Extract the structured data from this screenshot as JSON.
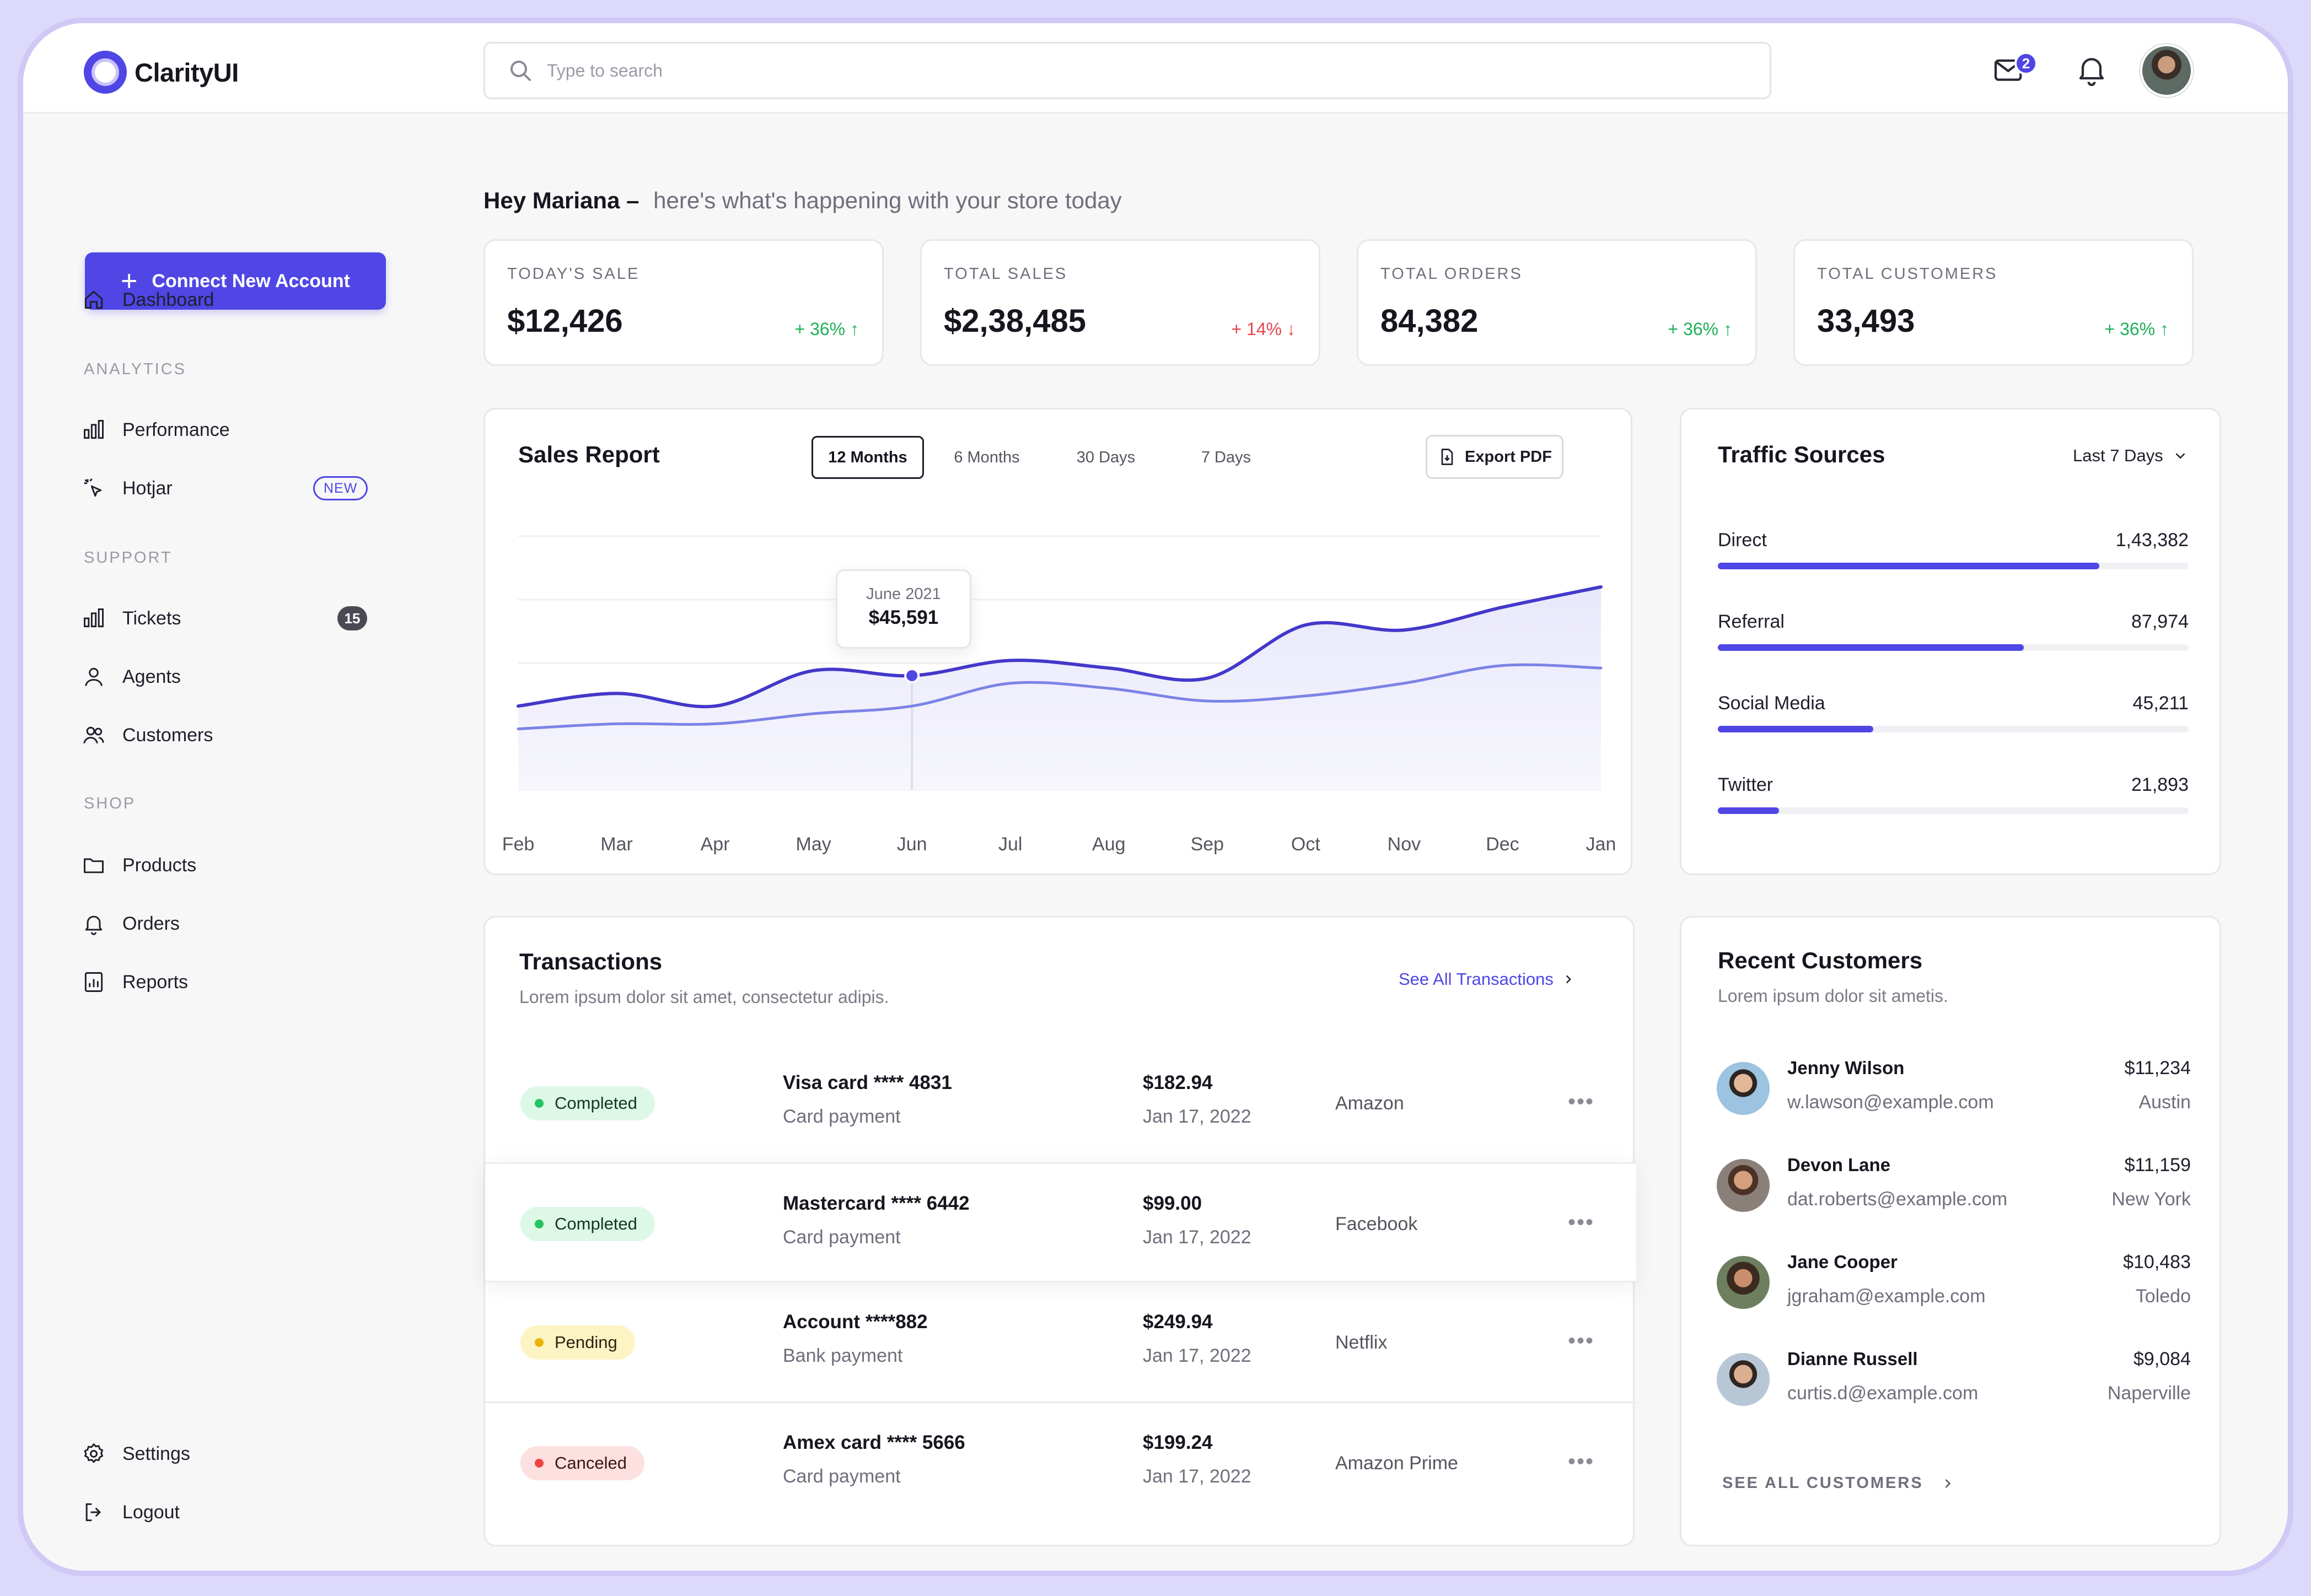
{
  "app": {
    "name": "ClarityUI"
  },
  "search": {
    "placeholder": "Type to search"
  },
  "header": {
    "mail_badge": "2"
  },
  "sidebar": {
    "connect_label": "Connect New Account",
    "dashboard": "Dashboard",
    "sections": {
      "analytics": "ANALYTICS",
      "support": "SUPPORT",
      "shop": "SHOP"
    },
    "performance": "Performance",
    "hotjar": "Hotjar",
    "hotjar_badge": "NEW",
    "tickets": "Tickets",
    "tickets_count": "15",
    "agents": "Agents",
    "customers": "Customers",
    "products": "Products",
    "orders": "Orders",
    "reports": "Reports",
    "settings": "Settings",
    "logout": "Logout"
  },
  "greeting": {
    "name": "Hey Mariana –",
    "text": "here's what's happening with your store today"
  },
  "stats": [
    {
      "title": "TODAY'S SALE",
      "value": "$12,426",
      "delta": "+ 36% ↑",
      "trend": "up"
    },
    {
      "title": "TOTAL SALES",
      "value": "$2,38,485",
      "delta": "+ 14% ↓",
      "trend": "down"
    },
    {
      "title": "TOTAL ORDERS",
      "value": "84,382",
      "delta": "+ 36% ↑",
      "trend": "up"
    },
    {
      "title": "TOTAL CUSTOMERS",
      "value": "33,493",
      "delta": "+ 36% ↑",
      "trend": "up"
    }
  ],
  "sales_report": {
    "title": "Sales Report",
    "ranges": [
      "12 Months",
      "6 Months",
      "30 Days",
      "7 Days"
    ],
    "active_range": "12 Months",
    "export_label": "Export PDF",
    "tooltip": {
      "label": "June 2021",
      "value": "$45,591"
    }
  },
  "chart_data": {
    "type": "line",
    "categories": [
      "Feb",
      "Mar",
      "Apr",
      "May",
      "Jun",
      "Jul",
      "Aug",
      "Sep",
      "Oct",
      "Nov",
      "Dec",
      "Jan"
    ],
    "series": [
      {
        "values": [
          33,
          38,
          33,
          47,
          45,
          51,
          48,
          44,
          65,
          63,
          72,
          80
        ]
      },
      {
        "values": [
          24,
          26,
          26,
          30,
          33,
          42,
          40,
          35,
          37,
          42,
          49,
          48
        ]
      }
    ],
    "ylim": [
      0,
      100
    ],
    "highlight": {
      "category": "Jun",
      "series": 0
    },
    "colors": [
      "#4338ca",
      "#7c83e6"
    ],
    "grid": true
  },
  "traffic": {
    "title": "Traffic Sources",
    "range": "Last 7 Days",
    "rows": [
      {
        "label": "Direct",
        "value": "1,43,382",
        "fraction": 0.81
      },
      {
        "label": "Referral",
        "value": "87,974",
        "fraction": 0.65
      },
      {
        "label": "Social Media",
        "value": "45,211",
        "fraction": 0.33
      },
      {
        "label": "Twitter",
        "value": "21,893",
        "fraction": 0.13
      }
    ]
  },
  "transactions": {
    "title": "Transactions",
    "subtitle": "Lorem ipsum dolor sit amet, consectetur adipis.",
    "see_all": "See All Transactions",
    "rows": [
      {
        "status": "Completed",
        "card": "Visa card  **** 4831",
        "method": "Card payment",
        "amount": "$182.94",
        "date": "Jan 17, 2022",
        "merchant": "Amazon",
        "more": "•••"
      },
      {
        "status": "Completed",
        "card": "Mastercard  **** 6442",
        "method": "Card payment",
        "amount": "$99.00",
        "date": "Jan 17, 2022",
        "merchant": "Facebook",
        "more": "•••"
      },
      {
        "status": "Pending",
        "card": "Account  ****882",
        "method": "Bank payment",
        "amount": "$249.94",
        "date": "Jan 17, 2022",
        "merchant": "Netflix",
        "more": "•••"
      },
      {
        "status": "Canceled",
        "card": "Amex card  **** 5666",
        "method": "Card payment",
        "amount": "$199.24",
        "date": "Jan 17, 2022",
        "merchant": "Amazon Prime",
        "more": "•••"
      }
    ]
  },
  "recent_customers": {
    "title": "Recent Customers",
    "subtitle": "Lorem ipsum dolor sit ametis.",
    "see_all": "SEE ALL CUSTOMERS",
    "rows": [
      {
        "name": "Jenny Wilson",
        "email": "w.lawson@example.com",
        "amount": "$11,234",
        "city": "Austin"
      },
      {
        "name": "Devon Lane",
        "email": "dat.roberts@example.com",
        "amount": "$11,159",
        "city": "New York"
      },
      {
        "name": "Jane Cooper",
        "email": "jgraham@example.com",
        "amount": "$10,483",
        "city": "Toledo"
      },
      {
        "name": "Dianne Russell",
        "email": "curtis.d@example.com",
        "amount": "$9,084",
        "city": "Naperville"
      }
    ]
  }
}
